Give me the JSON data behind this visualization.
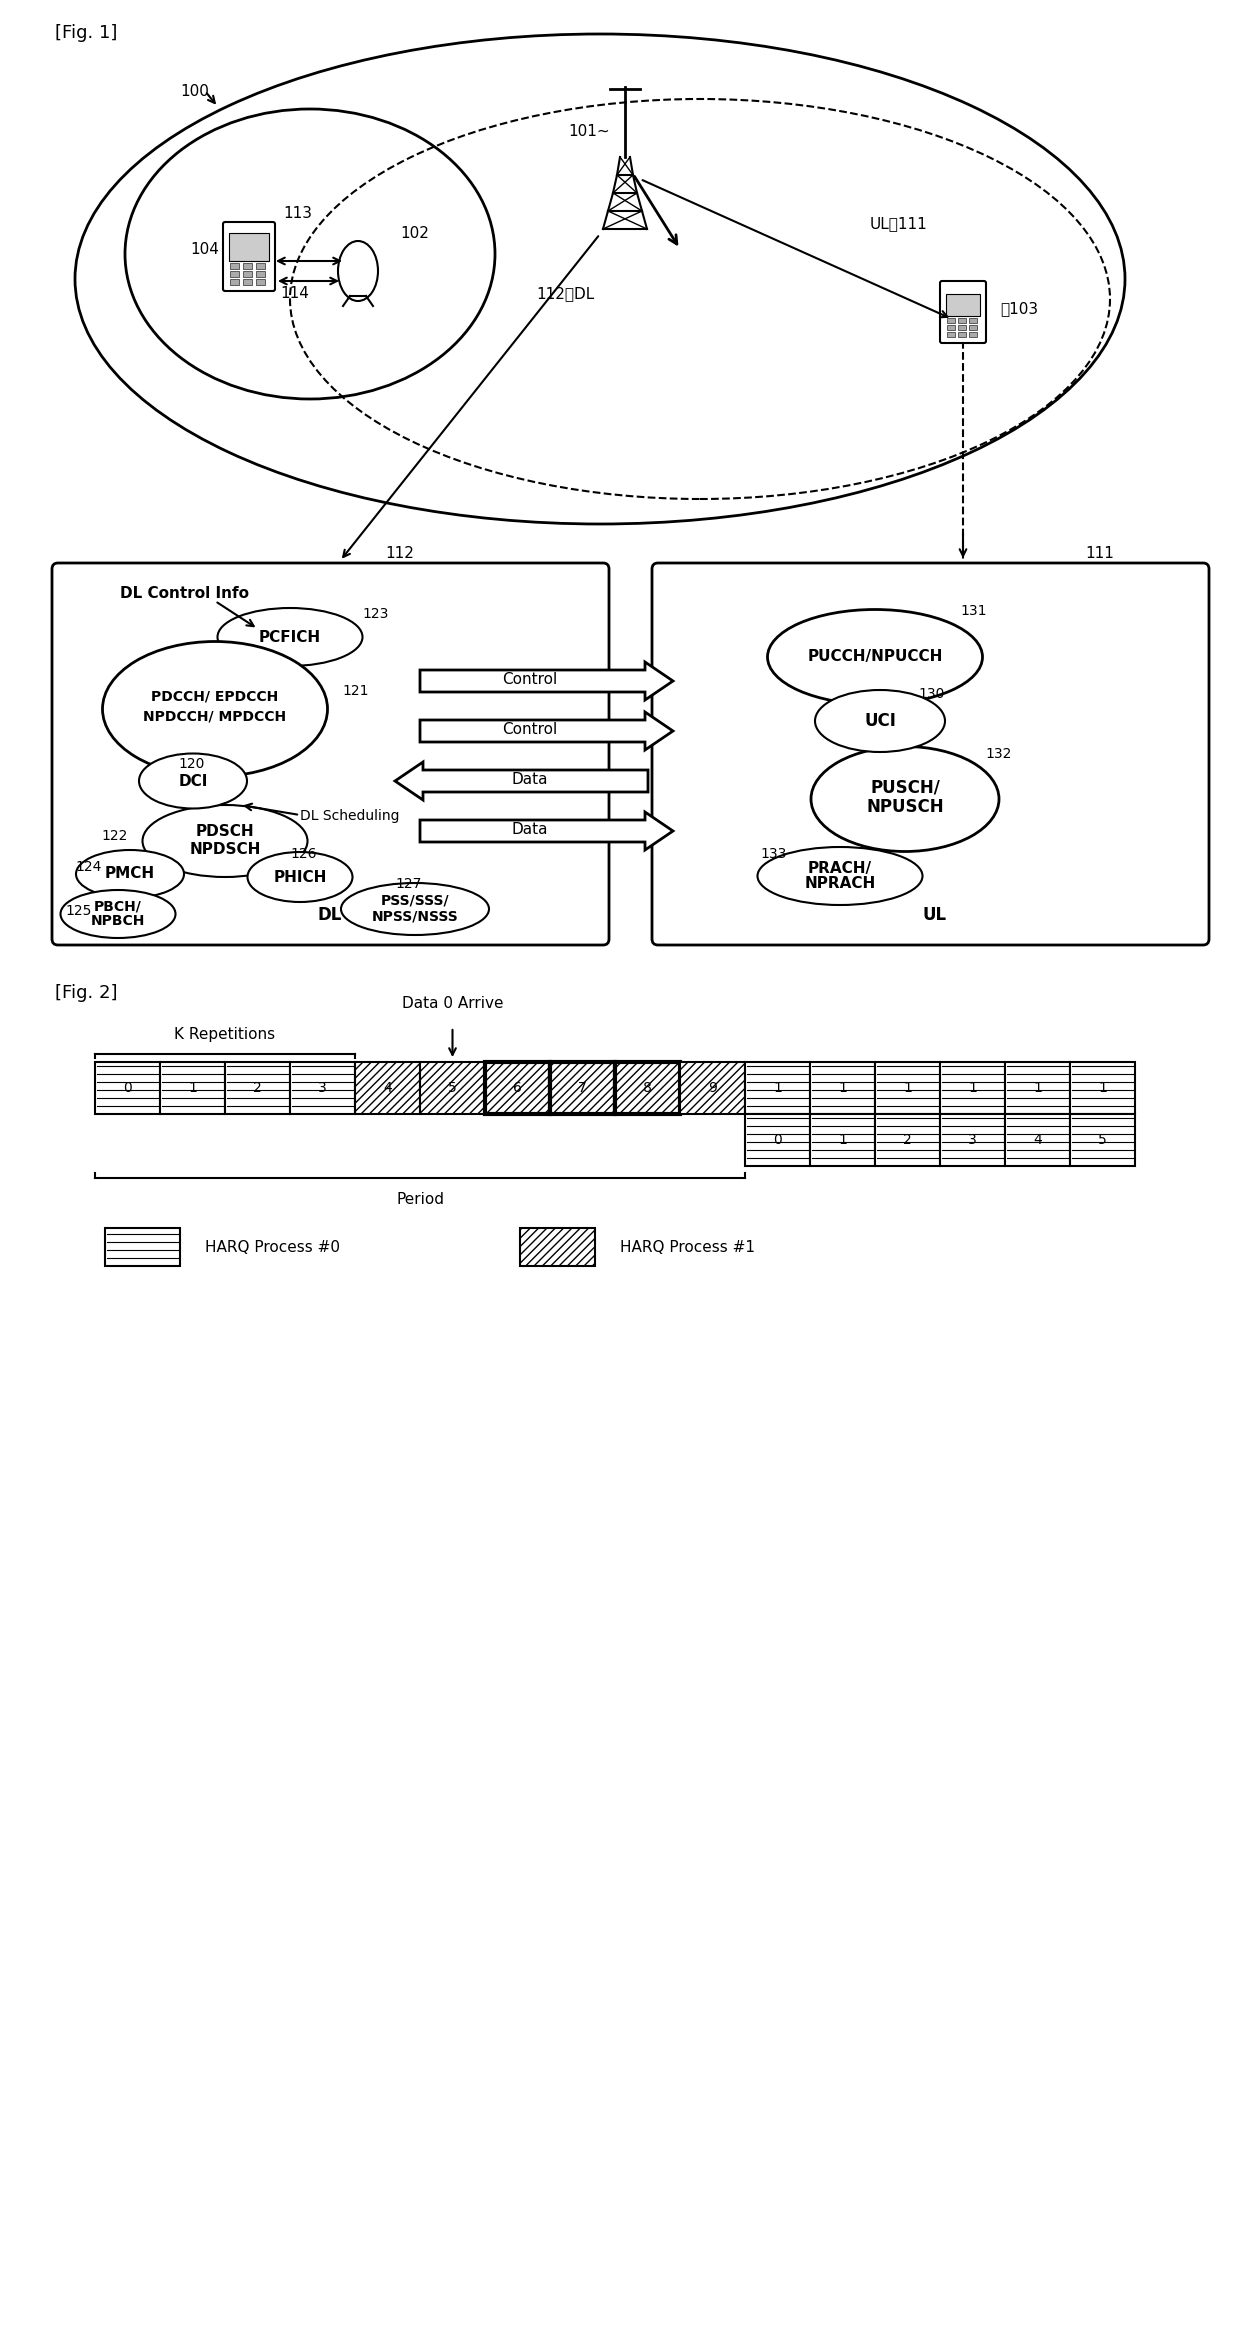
{
  "fig1_label": "[Fig. 1]",
  "fig2_label": "[Fig. 2]",
  "bg_color": "#ffffff",
  "line_color": "#000000"
}
